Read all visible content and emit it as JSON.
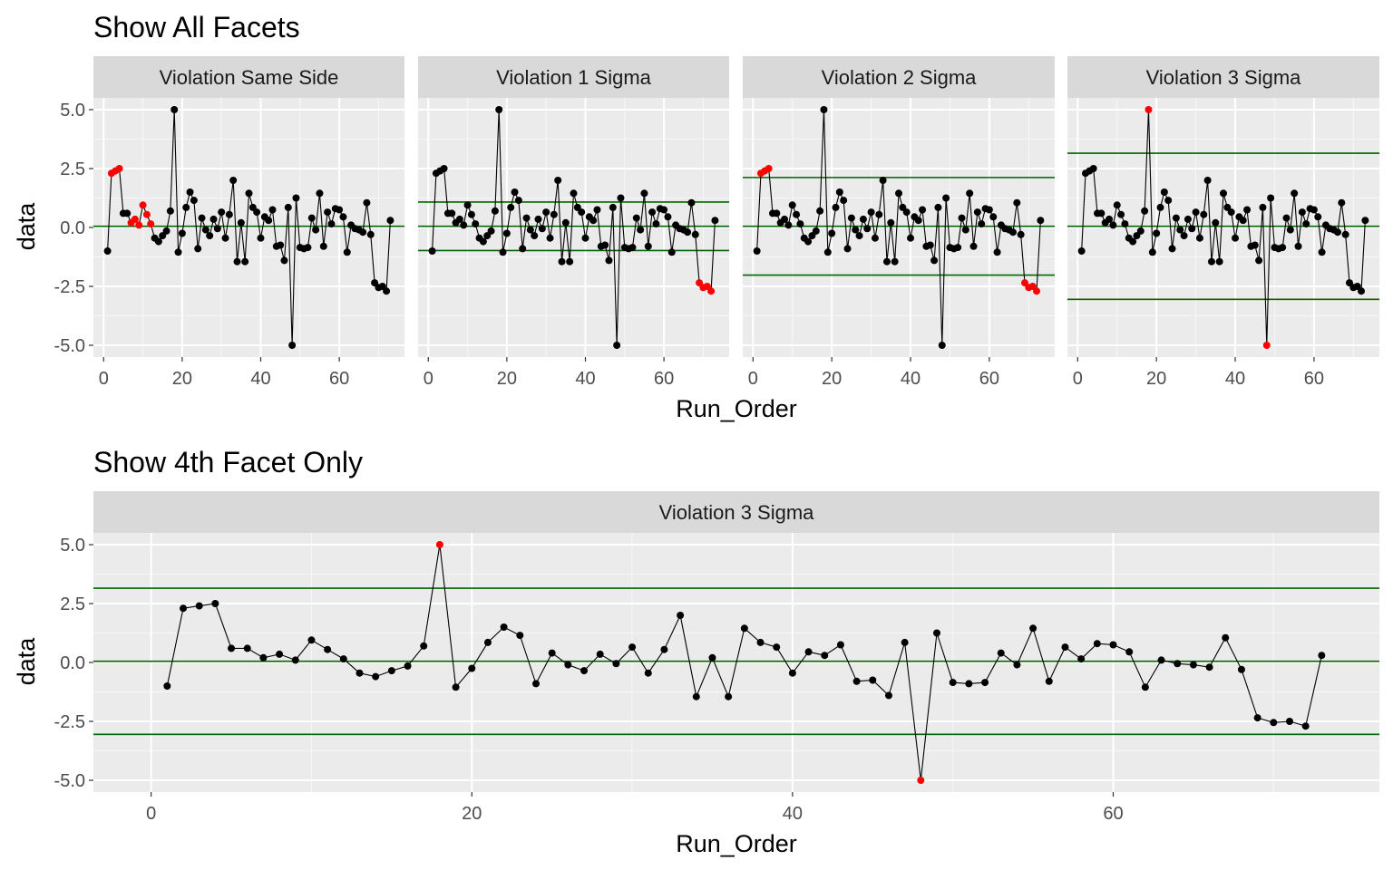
{
  "chart_data": [
    {
      "type": "line",
      "title": "Show All Facets",
      "xlabel": "Run_Order",
      "ylabel": "data",
      "xlim": [
        -2.6,
        76.6
      ],
      "ylim": [
        -5.5,
        5.5
      ],
      "x_ticks": [
        0,
        20,
        40,
        60
      ],
      "y_ticks": [
        5.0,
        2.5,
        0.0,
        -2.5,
        -5.0
      ],
      "y_tick_labels": [
        "5.0",
        "2.5",
        "0.0",
        "-2.5",
        "-5.0"
      ],
      "grid": true,
      "colors": {
        "normal": "#000000",
        "violation": "#ff0000",
        "limit_line": "#006400",
        "panel_bg": "#ebebeb",
        "strip_bg": "#d9d9d9"
      },
      "facets": [
        {
          "name": "Violation Same Side",
          "limit_lines": [
            0.05
          ],
          "violations": [
            2,
            3,
            4,
            7,
            8,
            9,
            10,
            11,
            12
          ]
        },
        {
          "name": "Violation 1 Sigma",
          "limit_lines": [
            1.08,
            0.05,
            -0.98
          ],
          "violations": [
            69,
            70,
            71,
            72
          ]
        },
        {
          "name": "Violation 2 Sigma",
          "limit_lines": [
            2.12,
            0.05,
            -2.02
          ],
          "violations": [
            2,
            3,
            4,
            69,
            70,
            71,
            72
          ]
        },
        {
          "name": "Violation 3 Sigma",
          "limit_lines": [
            3.15,
            0.05,
            -3.05
          ],
          "violations": [
            18,
            48
          ]
        }
      ]
    },
    {
      "type": "line",
      "title": "Show 4th Facet Only",
      "xlabel": "Run_Order",
      "ylabel": "data",
      "xlim": [
        -3.6,
        76.6
      ],
      "ylim": [
        -5.5,
        5.5
      ],
      "x_ticks": [
        0,
        20,
        40,
        60
      ],
      "y_ticks": [
        5.0,
        2.5,
        0.0,
        -2.5,
        -5.0
      ],
      "y_tick_labels": [
        "5.0",
        "2.5",
        "0.0",
        "-2.5",
        "-5.0"
      ],
      "grid": true,
      "colors": {
        "normal": "#000000",
        "violation": "#ff0000",
        "limit_line": "#006400",
        "panel_bg": "#ebebeb",
        "strip_bg": "#d9d9d9"
      },
      "facets": [
        {
          "name": "Violation 3 Sigma",
          "limit_lines": [
            3.15,
            0.05,
            -3.05
          ],
          "violations": [
            18,
            48
          ]
        }
      ]
    }
  ],
  "series": {
    "name": "data",
    "x": [
      1,
      2,
      3,
      4,
      5,
      6,
      7,
      8,
      9,
      10,
      11,
      12,
      13,
      14,
      15,
      16,
      17,
      18,
      19,
      20,
      21,
      22,
      23,
      24,
      25,
      26,
      27,
      28,
      29,
      30,
      31,
      32,
      33,
      34,
      35,
      36,
      37,
      38,
      39,
      40,
      41,
      42,
      43,
      44,
      45,
      46,
      47,
      48,
      49,
      50,
      51,
      52,
      53,
      54,
      55,
      56,
      57,
      58,
      59,
      60,
      61,
      62,
      63,
      64,
      65,
      66,
      67,
      68,
      69,
      70,
      71,
      72,
      73
    ],
    "y": [
      -1.0,
      2.3,
      2.4,
      2.5,
      0.6,
      0.6,
      0.2,
      0.35,
      0.1,
      0.95,
      0.55,
      0.15,
      -0.45,
      -0.6,
      -0.35,
      -0.15,
      0.7,
      5.0,
      -1.05,
      -0.25,
      0.85,
      1.5,
      1.15,
      -0.9,
      0.4,
      -0.1,
      -0.35,
      0.35,
      -0.05,
      0.65,
      -0.45,
      0.55,
      2.0,
      -1.45,
      0.2,
      -1.45,
      1.45,
      0.85,
      0.65,
      -0.45,
      0.45,
      0.3,
      0.75,
      -0.8,
      -0.75,
      -1.4,
      0.85,
      -5.0,
      1.25,
      -0.85,
      -0.9,
      -0.85,
      0.4,
      -0.1,
      1.45,
      -0.8,
      0.65,
      0.15,
      0.8,
      0.75,
      0.45,
      -1.05,
      0.1,
      -0.05,
      -0.1,
      -0.2,
      1.05,
      -0.3,
      -2.35,
      -2.55,
      -2.5,
      -2.7,
      0.3
    ]
  }
}
